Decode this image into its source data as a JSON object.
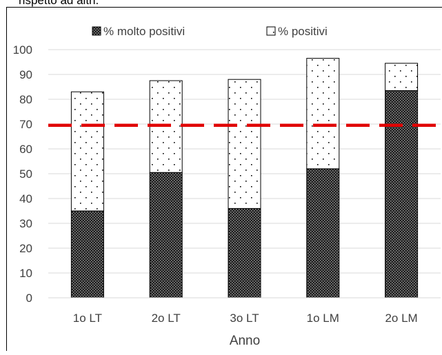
{
  "caption_fragment": "rispetto ad altri.",
  "chart_data": {
    "type": "bar",
    "stacked": true,
    "categories": [
      "1o LT",
      "2o LT",
      "3o LT",
      "1o LM",
      "2o LM"
    ],
    "series": [
      {
        "name": "% molto positivi",
        "values": [
          35,
          50.5,
          36,
          52,
          83.5
        ],
        "pattern": "dense-dots"
      },
      {
        "name": "% positivi",
        "values": [
          48,
          37,
          52,
          44.5,
          11
        ],
        "pattern": "sparse-dots"
      }
    ],
    "totals": [
      83,
      87.5,
      88,
      96.5,
      94.5
    ],
    "xlabel": "Anno",
    "ylabel": "",
    "ylim": [
      0,
      100
    ],
    "yticks": [
      0,
      10,
      20,
      30,
      40,
      50,
      60,
      70,
      80,
      90,
      100
    ],
    "grid": true,
    "legend_position": "top",
    "reference_line": {
      "value": 69.5,
      "color": "#e00000",
      "style": "dashed"
    },
    "colors": {
      "bar_dark": "#222222",
      "bar_border": "#000000",
      "grid": "#d9d9d9",
      "reference": "#e00000"
    }
  }
}
